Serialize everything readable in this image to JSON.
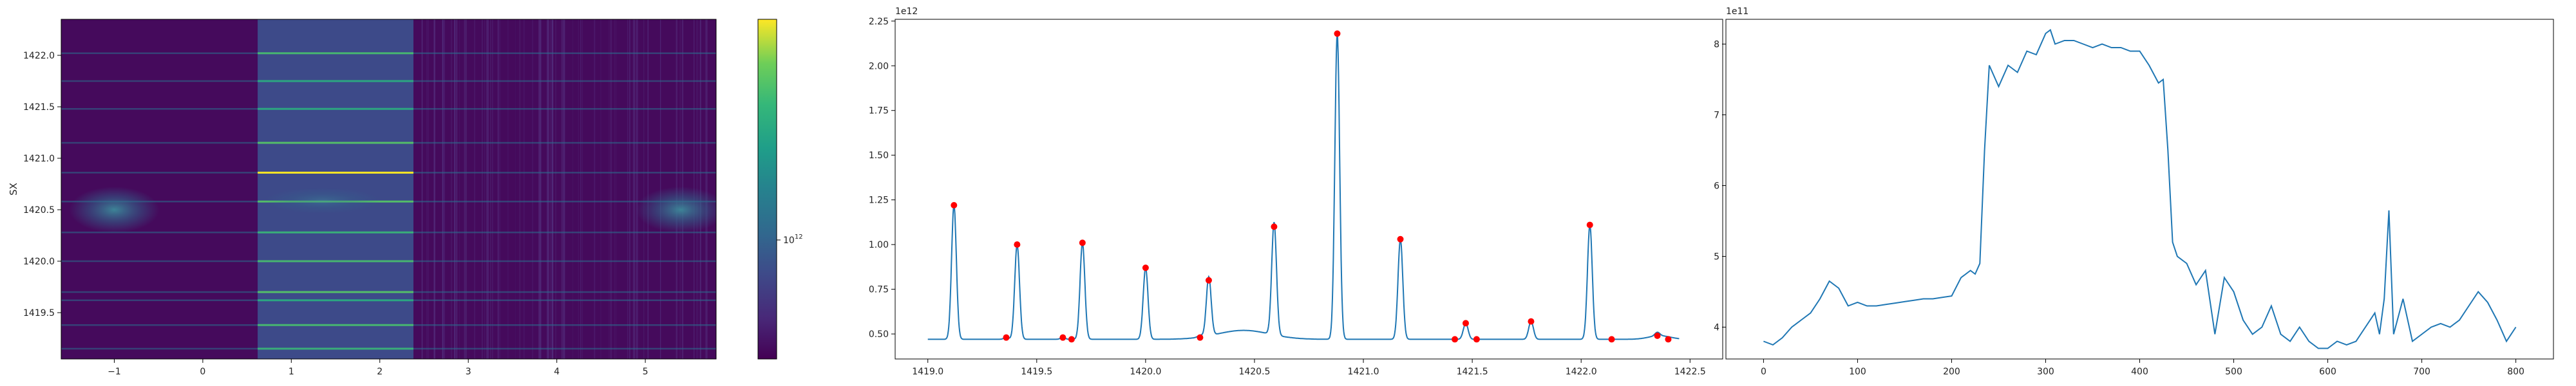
{
  "chart_data": [
    {
      "type": "heatmap",
      "title": "",
      "xlabel": "",
      "ylabel": "SX",
      "xlim": [
        -1.6,
        5.8
      ],
      "ylim": [
        1419.05,
        1422.35
      ],
      "x_ticks": [
        "−1",
        "0",
        "1",
        "2",
        "3",
        "4",
        "5"
      ],
      "x_tick_values": [
        -1,
        0,
        1,
        2,
        3,
        4,
        5
      ],
      "y_ticks": [
        "1419.5",
        "1420.0",
        "1420.5",
        "1421.0",
        "1421.5",
        "1422.0"
      ],
      "y_tick_values": [
        1419.5,
        1420.0,
        1420.5,
        1421.0,
        1421.5,
        1422.0
      ],
      "band_x_range": [
        0.62,
        2.38
      ],
      "line_rows": [
        {
          "y": 1419.15,
          "intensity": 0.5
        },
        {
          "y": 1419.38,
          "intensity": 0.55
        },
        {
          "y": 1419.62,
          "intensity": 0.45
        },
        {
          "y": 1419.7,
          "intensity": 0.6
        },
        {
          "y": 1420.0,
          "intensity": 0.55
        },
        {
          "y": 1420.28,
          "intensity": 0.5
        },
        {
          "y": 1420.58,
          "intensity": 0.6
        },
        {
          "y": 1420.86,
          "intensity": 1.0
        },
        {
          "y": 1421.15,
          "intensity": 0.6
        },
        {
          "y": 1421.48,
          "intensity": 0.45
        },
        {
          "y": 1421.75,
          "intensity": 0.45
        },
        {
          "y": 1422.02,
          "intensity": 0.55
        }
      ],
      "colormap": "viridis",
      "colorbar": {
        "scale": "log",
        "tick_label": "10",
        "tick_exponent": "12"
      }
    },
    {
      "type": "line",
      "title": "",
      "xlabel": "",
      "ylabel": "",
      "offset_label": "1e12",
      "xlim": [
        1418.85,
        1422.65
      ],
      "ylim": [
        0.36,
        2.26
      ],
      "x_ticks": [
        "1419.0",
        "1419.5",
        "1420.0",
        "1420.5",
        "1421.0",
        "1421.5",
        "1422.0",
        "1422.5"
      ],
      "x_tick_values": [
        1419.0,
        1419.5,
        1420.0,
        1420.5,
        1421.0,
        1421.5,
        1422.0,
        1422.5
      ],
      "y_ticks": [
        "0.50",
        "0.75",
        "1.00",
        "1.25",
        "1.50",
        "1.75",
        "2.00",
        "2.25"
      ],
      "y_tick_values": [
        0.5,
        0.75,
        1.0,
        1.25,
        1.5,
        1.75,
        2.0,
        2.25
      ],
      "baseline": 0.47,
      "peaks": [
        {
          "x": 1419.12,
          "y": 1.22
        },
        {
          "x": 1419.36,
          "y": 0.48
        },
        {
          "x": 1419.41,
          "y": 1.0
        },
        {
          "x": 1419.62,
          "y": 0.48
        },
        {
          "x": 1419.66,
          "y": 0.47
        },
        {
          "x": 1419.71,
          "y": 1.01
        },
        {
          "x": 1420.0,
          "y": 0.87
        },
        {
          "x": 1420.25,
          "y": 0.48
        },
        {
          "x": 1420.29,
          "y": 0.8
        },
        {
          "x": 1420.59,
          "y": 1.1
        },
        {
          "x": 1420.88,
          "y": 2.18
        },
        {
          "x": 1421.17,
          "y": 1.03
        },
        {
          "x": 1421.42,
          "y": 0.47
        },
        {
          "x": 1421.47,
          "y": 0.56
        },
        {
          "x": 1421.52,
          "y": 0.47
        },
        {
          "x": 1421.77,
          "y": 0.57
        },
        {
          "x": 1422.04,
          "y": 1.11
        },
        {
          "x": 1422.14,
          "y": 0.47
        },
        {
          "x": 1422.35,
          "y": 0.49
        },
        {
          "x": 1422.4,
          "y": 0.47
        }
      ],
      "bumps": [
        {
          "x": 1420.45,
          "y": 0.52,
          "width": 0.12
        },
        {
          "x": 1422.36,
          "y": 0.49,
          "width": 0.05
        }
      ],
      "line_color": "#1f77b4",
      "marker_color": "#ff0000"
    },
    {
      "type": "line",
      "title": "",
      "xlabel": "",
      "ylabel": "",
      "offset_label": "1e11",
      "xlim": [
        -40,
        840
      ],
      "ylim": [
        3.55,
        8.35
      ],
      "x_ticks": [
        "0",
        "100",
        "200",
        "300",
        "400",
        "500",
        "600",
        "700",
        "800"
      ],
      "x_tick_values": [
        0,
        100,
        200,
        300,
        400,
        500,
        600,
        700,
        800
      ],
      "y_ticks": [
        "4",
        "5",
        "6",
        "7",
        "8"
      ],
      "y_tick_values": [
        4,
        5,
        6,
        7,
        8
      ],
      "line_color": "#1f77b4",
      "x": [
        0,
        10,
        20,
        30,
        40,
        50,
        60,
        70,
        80,
        90,
        100,
        110,
        120,
        130,
        140,
        150,
        160,
        170,
        180,
        190,
        200,
        210,
        220,
        225,
        230,
        235,
        240,
        250,
        260,
        270,
        280,
        290,
        300,
        305,
        310,
        320,
        330,
        340,
        350,
        360,
        370,
        380,
        390,
        400,
        410,
        420,
        425,
        430,
        435,
        440,
        450,
        460,
        470,
        480,
        490,
        500,
        510,
        520,
        530,
        540,
        550,
        560,
        570,
        580,
        590,
        600,
        610,
        620,
        630,
        640,
        650,
        655,
        660,
        665,
        670,
        680,
        690,
        700,
        710,
        720,
        730,
        740,
        750,
        760,
        770,
        780,
        790,
        800
      ],
      "y": [
        3.8,
        3.75,
        3.85,
        4.0,
        4.1,
        4.2,
        4.4,
        4.65,
        4.55,
        4.3,
        4.35,
        4.3,
        4.3,
        4.32,
        4.34,
        4.36,
        4.38,
        4.4,
        4.4,
        4.42,
        4.44,
        4.7,
        4.8,
        4.75,
        4.9,
        6.5,
        7.7,
        7.4,
        7.7,
        7.6,
        7.9,
        7.85,
        8.15,
        8.2,
        8.0,
        8.05,
        8.05,
        8.0,
        7.95,
        8.0,
        7.95,
        7.95,
        7.9,
        7.9,
        7.7,
        7.45,
        7.5,
        6.5,
        5.2,
        5.0,
        4.9,
        4.6,
        4.8,
        3.9,
        4.7,
        4.5,
        4.1,
        3.9,
        4.0,
        4.3,
        3.9,
        3.8,
        4.0,
        3.8,
        3.7,
        3.7,
        3.8,
        3.75,
        3.8,
        4.0,
        4.2,
        3.9,
        4.4,
        5.65,
        3.9,
        4.4,
        3.8,
        3.9,
        4.0,
        4.05,
        4.0,
        4.1,
        4.3,
        4.5,
        4.35,
        4.1,
        3.8,
        4.0
      ]
    }
  ]
}
